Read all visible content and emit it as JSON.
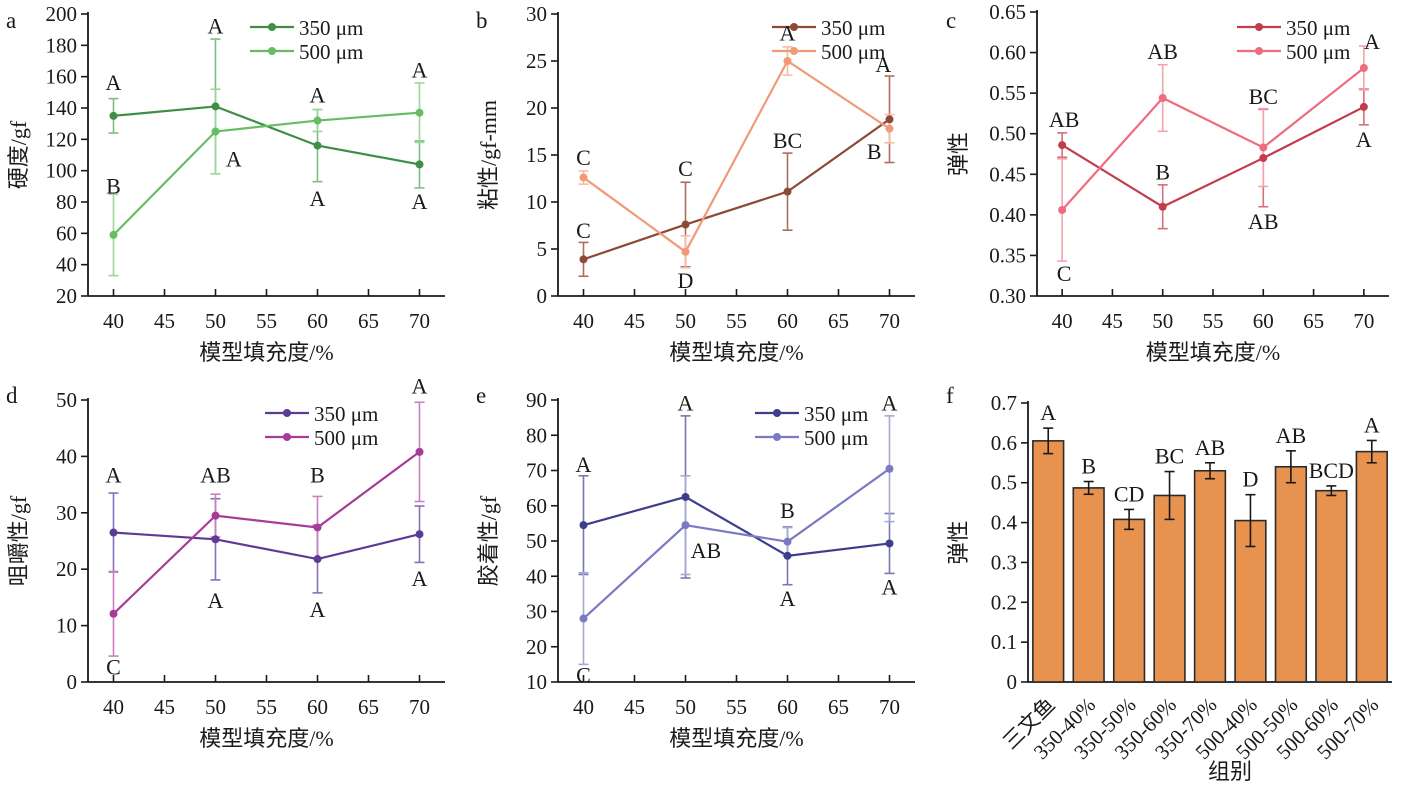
{
  "figure": {
    "background": "#ffffff"
  },
  "chart_data": [
    {
      "id": "a",
      "letter": "a",
      "type": "line",
      "title": "",
      "ylabel": "硬度/gf",
      "xlabel": "模型填充度/%",
      "ylim": [
        20,
        200
      ],
      "ystep": 20,
      "ydecimals": 0,
      "xlim": [
        37.5,
        72.5
      ],
      "xticks": [
        40,
        45,
        50,
        55,
        60,
        65,
        70
      ],
      "legend_position": "top-right",
      "grid": false,
      "series": [
        {
          "name": "350 μm",
          "color": "#3e8e47",
          "err_color": "#7cbf80",
          "x": [
            40,
            50,
            60,
            70
          ],
          "y": [
            135,
            141,
            116,
            104
          ],
          "err": [
            11,
            43,
            23,
            15
          ]
        },
        {
          "name": "500 μm",
          "color": "#67bd63",
          "err_color": "#9ed69a",
          "x": [
            40,
            50,
            60,
            70
          ],
          "y": [
            59,
            125,
            132,
            137
          ],
          "err": [
            26,
            27,
            7,
            19
          ]
        }
      ],
      "annotations": [
        {
          "x": 40,
          "y": 156,
          "text": "A"
        },
        {
          "x": 40,
          "y": 90,
          "text": "B"
        },
        {
          "x": 50,
          "y": 192,
          "text": "A"
        },
        {
          "x": 51.8,
          "y": 107,
          "text": "A"
        },
        {
          "x": 60,
          "y": 148,
          "text": "A"
        },
        {
          "x": 60,
          "y": 82,
          "text": "A"
        },
        {
          "x": 70,
          "y": 164,
          "text": "A"
        },
        {
          "x": 70,
          "y": 80,
          "text": "A"
        }
      ]
    },
    {
      "id": "b",
      "letter": "b",
      "type": "line",
      "title": "",
      "ylabel": "粘性/gf-mm",
      "xlabel": "模型填充度/%",
      "ylim": [
        0,
        30
      ],
      "ystep": 5,
      "ydecimals": 0,
      "xlim": [
        37.5,
        72.5
      ],
      "xticks": [
        40,
        45,
        50,
        55,
        60,
        65,
        70
      ],
      "legend_position": "top-right",
      "grid": false,
      "series": [
        {
          "name": "350 μm",
          "color": "#8e4938",
          "err_color": "#aa6e59",
          "x": [
            40,
            50,
            60,
            70
          ],
          "y": [
            3.9,
            7.6,
            11.1,
            18.8
          ],
          "err": [
            1.8,
            4.5,
            4.1,
            4.6
          ]
        },
        {
          "name": "500 μm",
          "color": "#f09a78",
          "err_color": "#f5bda4",
          "x": [
            40,
            50,
            60,
            70
          ],
          "y": [
            12.6,
            4.7,
            25,
            17.8
          ],
          "err": [
            0.7,
            1.7,
            1.5,
            1.5
          ]
        }
      ],
      "annotations": [
        {
          "x": 40,
          "y": 14.7,
          "text": "C"
        },
        {
          "x": 40,
          "y": 6.9,
          "text": "C"
        },
        {
          "x": 50,
          "y": 13.5,
          "text": "C"
        },
        {
          "x": 50,
          "y": 1.6,
          "text": "D"
        },
        {
          "x": 60,
          "y": 27.9,
          "text": "A"
        },
        {
          "x": 60,
          "y": 16.5,
          "text": "BC"
        },
        {
          "x": 69.4,
          "y": 24.6,
          "text": "A"
        },
        {
          "x": 68.5,
          "y": 15.3,
          "text": "B"
        }
      ]
    },
    {
      "id": "c",
      "letter": "c",
      "type": "line",
      "title": "",
      "ylabel": "弹性",
      "xlabel": "模型填充度/%",
      "ylim": [
        0.3,
        0.65
      ],
      "ystep": 0.05,
      "ydecimals": 2,
      "xlim": [
        37.5,
        72.5
      ],
      "xticks": [
        40,
        45,
        50,
        55,
        60,
        65,
        70
      ],
      "legend_position": "top-right",
      "grid": false,
      "series": [
        {
          "name": "350 μm",
          "color": "#c23c4c",
          "err_color": "#d3707b",
          "x": [
            40,
            50,
            60,
            70
          ],
          "y": [
            0.486,
            0.41,
            0.47,
            0.533
          ],
          "err": [
            0.015,
            0.027,
            0.06,
            0.022
          ]
        },
        {
          "name": "500 μm",
          "color": "#ef6c7e",
          "err_color": "#f5a2ab",
          "x": [
            40,
            50,
            60,
            70
          ],
          "y": [
            0.406,
            0.544,
            0.483,
            0.581
          ],
          "err": [
            0.063,
            0.041,
            0.048,
            0.027
          ]
        }
      ],
      "annotations": [
        {
          "x": 40.2,
          "y": 0.517,
          "text": "AB"
        },
        {
          "x": 40.2,
          "y": 0.327,
          "text": "C"
        },
        {
          "x": 50,
          "y": 0.452,
          "text": "B"
        },
        {
          "x": 50,
          "y": 0.601,
          "text": "AB"
        },
        {
          "x": 60,
          "y": 0.545,
          "text": "BC"
        },
        {
          "x": 60,
          "y": 0.391,
          "text": "AB"
        },
        {
          "x": 70,
          "y": 0.492,
          "text": "A"
        },
        {
          "x": 70.8,
          "y": 0.613,
          "text": "A"
        }
      ]
    },
    {
      "id": "d",
      "letter": "d",
      "type": "line",
      "title": "",
      "ylabel": "咀嚼性/gf",
      "xlabel": "模型填充度/%",
      "ylim": [
        0,
        50
      ],
      "ystep": 10,
      "ydecimals": 0,
      "xlim": [
        37.5,
        72.5
      ],
      "xticks": [
        40,
        45,
        50,
        55,
        60,
        65,
        70
      ],
      "legend_position": "top-right",
      "grid": false,
      "series": [
        {
          "name": "350 μm",
          "color": "#5c3a96",
          "err_color": "#8a6fba",
          "x": [
            40,
            50,
            60,
            70
          ],
          "y": [
            26.5,
            25.3,
            21.8,
            26.2
          ],
          "err": [
            7,
            7.2,
            6,
            5
          ]
        },
        {
          "name": "500 μm",
          "color": "#a73c98",
          "err_color": "#ca7fc0",
          "x": [
            40,
            50,
            60,
            70
          ],
          "y": [
            12.1,
            29.5,
            27.4,
            40.8
          ],
          "err": [
            7.5,
            3.8,
            5.5,
            8.8
          ]
        }
      ],
      "annotations": [
        {
          "x": 40,
          "y": 36.6,
          "text": "A"
        },
        {
          "x": 40,
          "y": 2.6,
          "text": "C"
        },
        {
          "x": 50,
          "y": 36.6,
          "text": "AB"
        },
        {
          "x": 50,
          "y": 14.4,
          "text": "A"
        },
        {
          "x": 60,
          "y": 36.6,
          "text": "B"
        },
        {
          "x": 60,
          "y": 12.8,
          "text": "A"
        },
        {
          "x": 70,
          "y": 52.4,
          "text": "A"
        },
        {
          "x": 70,
          "y": 18.3,
          "text": "A"
        }
      ]
    },
    {
      "id": "e",
      "letter": "e",
      "type": "line",
      "title": "",
      "ylabel": "胶着性/gf",
      "xlabel": "模型填充度/%",
      "ylim": [
        10,
        90
      ],
      "ystep": 10,
      "ydecimals": 0,
      "xlim": [
        37.5,
        72.5
      ],
      "xticks": [
        40,
        45,
        50,
        55,
        60,
        65,
        70
      ],
      "legend_position": "top-right",
      "grid": false,
      "series": [
        {
          "name": "350 μm",
          "color": "#3d3d8c",
          "err_color": "#7777b4",
          "x": [
            40,
            50,
            60,
            70
          ],
          "y": [
            54.5,
            62.5,
            45.8,
            49.3
          ],
          "err": [
            14,
            23,
            8.2,
            8.5
          ]
        },
        {
          "name": "500 μm",
          "color": "#7a7ac2",
          "err_color": "#a8a8d6",
          "x": [
            40,
            50,
            60,
            70
          ],
          "y": [
            28,
            54.5,
            49.8,
            70.5
          ],
          "err": [
            13,
            14,
            4,
            15
          ]
        }
      ],
      "annotations": [
        {
          "x": 40,
          "y": 71.5,
          "text": "A"
        },
        {
          "x": 40,
          "y": 11.8,
          "text": "C"
        },
        {
          "x": 50,
          "y": 89,
          "text": "A"
        },
        {
          "x": 52,
          "y": 47.2,
          "text": "AB"
        },
        {
          "x": 60,
          "y": 58.5,
          "text": "B"
        },
        {
          "x": 60,
          "y": 33.6,
          "text": "A"
        },
        {
          "x": 70,
          "y": 89,
          "text": "A"
        },
        {
          "x": 70,
          "y": 36.8,
          "text": "A"
        }
      ]
    },
    {
      "id": "f",
      "letter": "f",
      "type": "bar",
      "title": "",
      "ylabel": "弹性",
      "xlabel": "组别",
      "ylim": [
        0,
        0.7
      ],
      "ystep": 0.1,
      "ydecimals": 1,
      "grid": false,
      "bar_color": "#e8924f",
      "bar_stroke": "#2b2b2b",
      "err_bar_color": "#1a1a1a",
      "categories": [
        "三文鱼",
        "350-40%",
        "350-50%",
        "350-60%",
        "350-70%",
        "500-40%",
        "500-50%",
        "500-60%",
        "500-70%"
      ],
      "values": [
        0.605,
        0.487,
        0.408,
        0.468,
        0.53,
        0.405,
        0.54,
        0.48,
        0.578
      ],
      "errors": [
        0.032,
        0.016,
        0.025,
        0.06,
        0.02,
        0.065,
        0.04,
        0.012,
        0.028
      ],
      "bar_labels": [
        "A",
        "B",
        "CD",
        "BC",
        "AB",
        "D",
        "AB",
        "BCD",
        "A"
      ]
    }
  ]
}
